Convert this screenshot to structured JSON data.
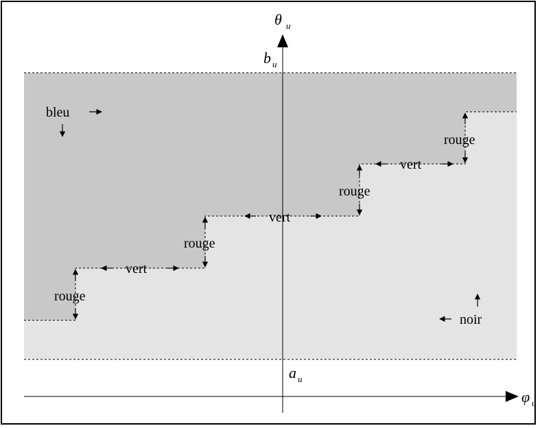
{
  "axes": {
    "y_label": "θ",
    "y_sub": "u",
    "x_label": "φ",
    "x_sub": "u",
    "top_bound": "b",
    "top_bound_sub": "u",
    "bottom_bound": "a",
    "bottom_bound_sub": "u"
  },
  "regions": {
    "upper": "bleu",
    "lower": "noir"
  },
  "transitions": {
    "rouge_1": "rouge",
    "vert_1": "vert",
    "rouge_2": "rouge",
    "vert_2": "vert",
    "rouge_3": "rouge",
    "vert_3": "vert",
    "rouge_4": "rouge"
  },
  "colors": {
    "upper_region": "#c8c8c8",
    "lower_region": "#e4e4e4",
    "line": "#000000"
  }
}
